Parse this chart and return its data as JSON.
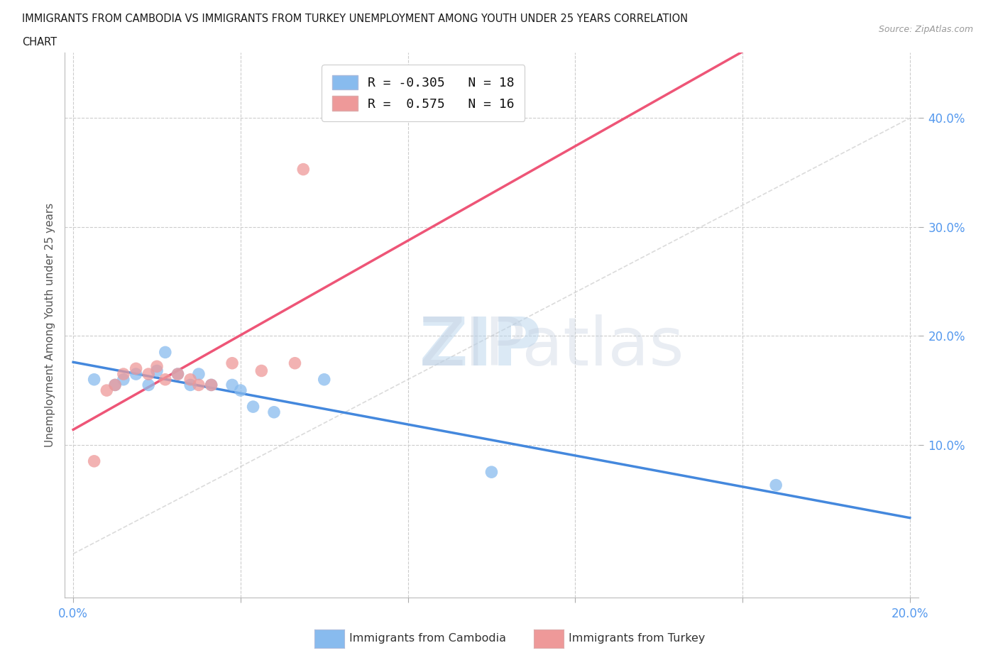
{
  "title_line1": "IMMIGRANTS FROM CAMBODIA VS IMMIGRANTS FROM TURKEY UNEMPLOYMENT AMONG YOUTH UNDER 25 YEARS CORRELATION",
  "title_line2": "CHART",
  "source": "Source: ZipAtlas.com",
  "ylabel": "Unemployment Among Youth under 25 years",
  "xlim": [
    -0.002,
    0.202
  ],
  "ylim": [
    -0.04,
    0.46
  ],
  "background_color": "#ffffff",
  "grid_color": "#cccccc",
  "diagonal_color": "#cccccc",
  "cambodia_color": "#88bbee",
  "turkey_color": "#ee9999",
  "cambodia_line_color": "#4488dd",
  "turkey_line_color": "#ee5577",
  "tick_color": "#5599ee",
  "cambodia_scatter_x": [
    0.005,
    0.01,
    0.012,
    0.015,
    0.018,
    0.02,
    0.022,
    0.025,
    0.028,
    0.03,
    0.033,
    0.038,
    0.04,
    0.043,
    0.048,
    0.06,
    0.1,
    0.168
  ],
  "cambodia_scatter_y": [
    0.16,
    0.155,
    0.16,
    0.165,
    0.155,
    0.168,
    0.185,
    0.165,
    0.155,
    0.165,
    0.155,
    0.155,
    0.15,
    0.135,
    0.13,
    0.16,
    0.075,
    0.063
  ],
  "turkey_scatter_x": [
    0.005,
    0.008,
    0.01,
    0.012,
    0.015,
    0.018,
    0.02,
    0.022,
    0.025,
    0.028,
    0.03,
    0.033,
    0.038,
    0.045,
    0.053,
    0.055
  ],
  "turkey_scatter_y": [
    0.085,
    0.15,
    0.155,
    0.165,
    0.17,
    0.165,
    0.172,
    0.16,
    0.165,
    0.16,
    0.155,
    0.155,
    0.175,
    0.168,
    0.175,
    0.353
  ],
  "watermark_color": "#c8dcea",
  "watermark_alpha": 0.5
}
